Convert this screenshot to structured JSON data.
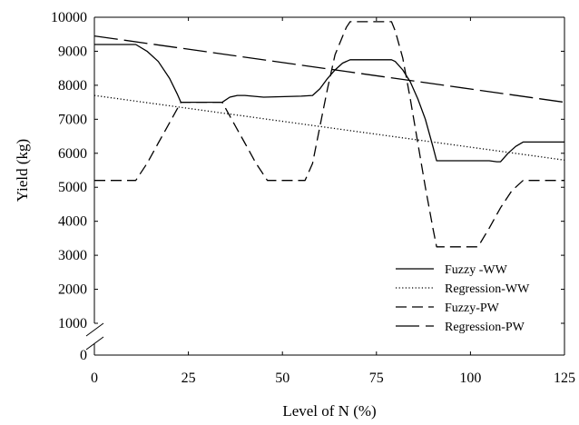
{
  "chart_data": {
    "type": "line",
    "title": "",
    "xlabel": "Level of N (%)",
    "ylabel": "Yield (kg)",
    "xlim": [
      0,
      125
    ],
    "ylim": [
      0,
      10000
    ],
    "y_axis_break": true,
    "grid": false,
    "legend_position": "bottom-right",
    "x_ticks": [
      0,
      25,
      50,
      75,
      100,
      125
    ],
    "x_tick_labels": [
      "0",
      "25",
      "50",
      "75",
      "100",
      "125"
    ],
    "y_ticks": [
      0,
      1000,
      2000,
      3000,
      4000,
      5000,
      6000,
      7000,
      8000,
      9000,
      10000
    ],
    "y_tick_labels": [
      "0",
      "1000",
      "2000",
      "3000",
      "4000",
      "5000",
      "6000",
      "7000",
      "8000",
      "9000",
      "10000"
    ],
    "series": [
      {
        "name": "Fuzzy -WW",
        "style": "solid",
        "color": "#000000",
        "x": [
          0,
          11,
          14,
          17,
          20,
          22,
          23,
          34,
          36,
          38,
          40,
          45,
          55,
          58,
          60,
          62,
          64,
          66,
          68,
          79,
          80,
          82,
          84,
          86,
          88,
          90,
          91,
          105,
          107,
          108,
          110,
          112,
          114,
          125
        ],
        "y": [
          9200,
          9200,
          9000,
          8700,
          8200,
          7750,
          7500,
          7500,
          7650,
          7700,
          7700,
          7650,
          7680,
          7700,
          7900,
          8200,
          8450,
          8650,
          8750,
          8750,
          8700,
          8450,
          8100,
          7600,
          7000,
          6200,
          5780,
          5780,
          5750,
          5750,
          6000,
          6200,
          6330,
          6330
        ]
      },
      {
        "name": "Regression-WW",
        "style": "dotted",
        "color": "#000000",
        "x": [
          0,
          125
        ],
        "y": [
          7700,
          5800
        ]
      },
      {
        "name": "Fuzzy-PW",
        "style": "dashed",
        "color": "#000000",
        "x": [
          0,
          11,
          14,
          17,
          20,
          23,
          34,
          37,
          40,
          43,
          46,
          56,
          58,
          60,
          62,
          64,
          67,
          68,
          79,
          80,
          82,
          84,
          86,
          88,
          90,
          91,
          102,
          105,
          108,
          111,
          114,
          125
        ],
        "y": [
          5200,
          5200,
          5700,
          6300,
          6900,
          7500,
          7500,
          6900,
          6300,
          5700,
          5200,
          5200,
          5700,
          6800,
          7900,
          8900,
          9700,
          9870,
          9870,
          9600,
          8800,
          7600,
          6300,
          5000,
          3800,
          3250,
          3250,
          3800,
          4400,
          4900,
          5200,
          5200
        ]
      },
      {
        "name": "Regression-PW",
        "style": "longdash",
        "color": "#000000",
        "x": [
          0,
          125
        ],
        "y": [
          9450,
          7500
        ]
      }
    ]
  }
}
